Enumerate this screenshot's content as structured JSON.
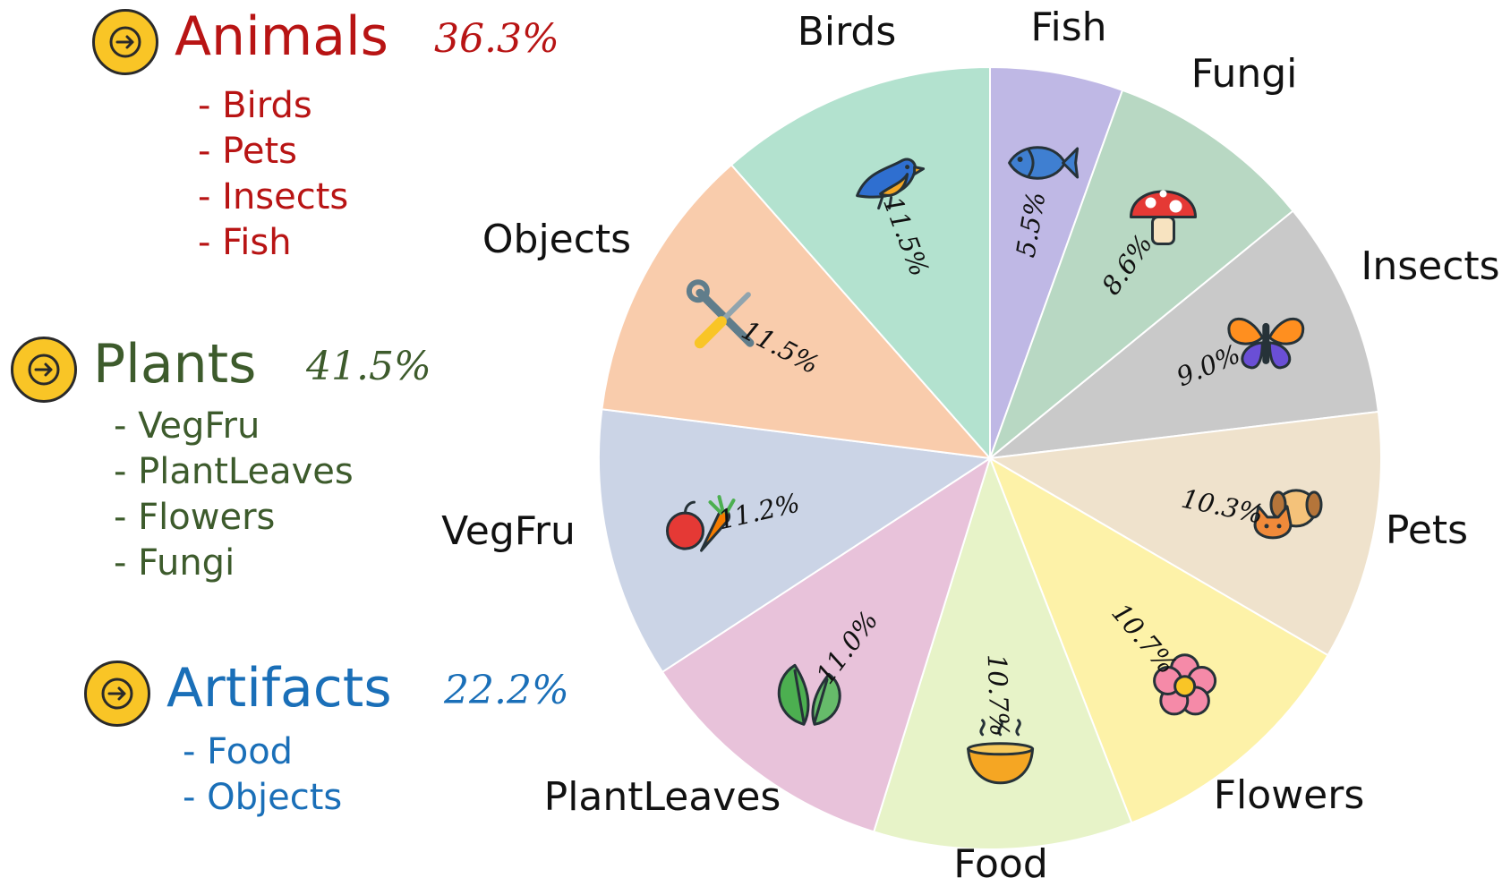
{
  "groups": [
    {
      "name": "Animals",
      "percent": "36.3%",
      "color": "#b81414",
      "items": [
        "- Birds",
        "- Pets",
        "- Insects",
        "- Fish"
      ]
    },
    {
      "name": "Plants",
      "percent": "41.5%",
      "color": "#3d5b2c",
      "items": [
        "- VegFru",
        "- PlantLeaves",
        "- Flowers",
        "- Fungi"
      ]
    },
    {
      "name": "Artifacts",
      "percent": "22.2%",
      "color": "#1a6fb8",
      "items": [
        "- Food",
        "- Objects"
      ]
    }
  ],
  "chart_data": {
    "type": "pie",
    "start_angle": 90,
    "direction": "clockwise",
    "categories": [
      "Fish",
      "Fungi",
      "Insects",
      "Pets",
      "Flowers",
      "Food",
      "PlantLeaves",
      "VegFru",
      "Objects",
      "Birds"
    ],
    "values": [
      5.5,
      8.6,
      9.0,
      10.3,
      10.7,
      10.7,
      11.0,
      11.2,
      11.5,
      11.5
    ],
    "value_labels": [
      "5.5%",
      "8.6%",
      "9.0%",
      "10.3%",
      "10.7%",
      "10.7%",
      "11.0%",
      "11.2%",
      "11.5%",
      "11.5%"
    ],
    "colors": [
      "#bfb8e5",
      "#b8d8c3",
      "#c9c9c9",
      "#efe2cc",
      "#fdf2a8",
      "#e7f3c8",
      "#e8c2da",
      "#cbd4e6",
      "#f9ccac",
      "#b3e2cf"
    ],
    "icons": [
      "fish-icon",
      "mushroom-icon",
      "butterfly-icon",
      "dog-cat-icon",
      "flower-icon",
      "soup-bowl-icon",
      "leaves-icon",
      "apple-carrot-icon",
      "tools-icon",
      "bird-icon"
    ],
    "legend": "none"
  }
}
